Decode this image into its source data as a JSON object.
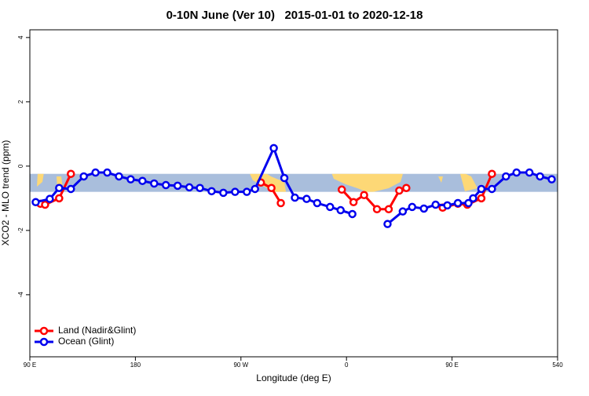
{
  "chart_data": {
    "type": "line",
    "title": "0-10N June (Ver 10)   2015-01-01 to 2020-12-18",
    "x_label": "Longitude (deg E)",
    "y_label": "XCO2 - MLO trend (ppm)",
    "xlim": [
      90,
      540
    ],
    "ylim": [
      -5.93,
      4.24
    ],
    "xticks": [
      {
        "value": 90,
        "label": "90 E"
      },
      180,
      {
        "value": 270,
        "label": "90 W"
      },
      {
        "value": 360,
        "label": "0"
      },
      {
        "value": 450,
        "label": "90 E"
      },
      540
    ],
    "yticks": [
      4,
      2,
      0,
      -2,
      -4
    ],
    "band": [
      -0.24,
      -0.8
    ],
    "band_color": "#a9bedc",
    "land_color": "#fdd876",
    "legend": "bottom-left",
    "series": [
      {
        "name": "Land (Nadir&Glint)",
        "color": "#ff0000",
        "x": [
          99,
          103,
          115,
          125,
          200,
          287,
          296,
          304,
          330,
          356,
          366,
          375,
          386,
          396,
          405,
          411,
          425,
          442,
          455,
          463,
          475,
          484
        ],
        "values": [
          -1.17,
          -1.2,
          -1.0,
          -0.24,
          null,
          -0.51,
          -0.68,
          -1.15,
          null,
          -0.73,
          -1.12,
          -0.9,
          -1.34,
          -1.34,
          -0.76,
          -0.68,
          null,
          -1.29,
          -1.17,
          -1.2,
          -1.0,
          -0.24
        ]
      },
      {
        "name": "Ocean (Glint)",
        "color": "#0000ee",
        "x": [
          95,
          107,
          115,
          125,
          136,
          146,
          156,
          166,
          176,
          186,
          196,
          206,
          216,
          226,
          235,
          245,
          255,
          265,
          275,
          282,
          298,
          307,
          316,
          326,
          335,
          346,
          355,
          365,
          380,
          395,
          408,
          416,
          426,
          436,
          446,
          455,
          464,
          468,
          475,
          484,
          496,
          505,
          516,
          525,
          535
        ],
        "values": [
          -1.12,
          -1.02,
          -0.68,
          -0.71,
          -0.32,
          -0.2,
          -0.2,
          -0.32,
          -0.41,
          -0.46,
          -0.54,
          -0.59,
          -0.61,
          -0.66,
          -0.68,
          -0.78,
          -0.83,
          -0.8,
          -0.8,
          -0.71,
          0.56,
          -0.37,
          -0.98,
          -1.02,
          -1.15,
          -1.27,
          -1.37,
          -1.49,
          null,
          -1.8,
          -1.41,
          -1.27,
          -1.32,
          -1.2,
          -1.22,
          -1.15,
          -1.15,
          -1.0,
          -0.71,
          -0.71,
          -0.32,
          -0.2,
          -0.2,
          -0.32,
          -0.41
        ]
      }
    ]
  }
}
